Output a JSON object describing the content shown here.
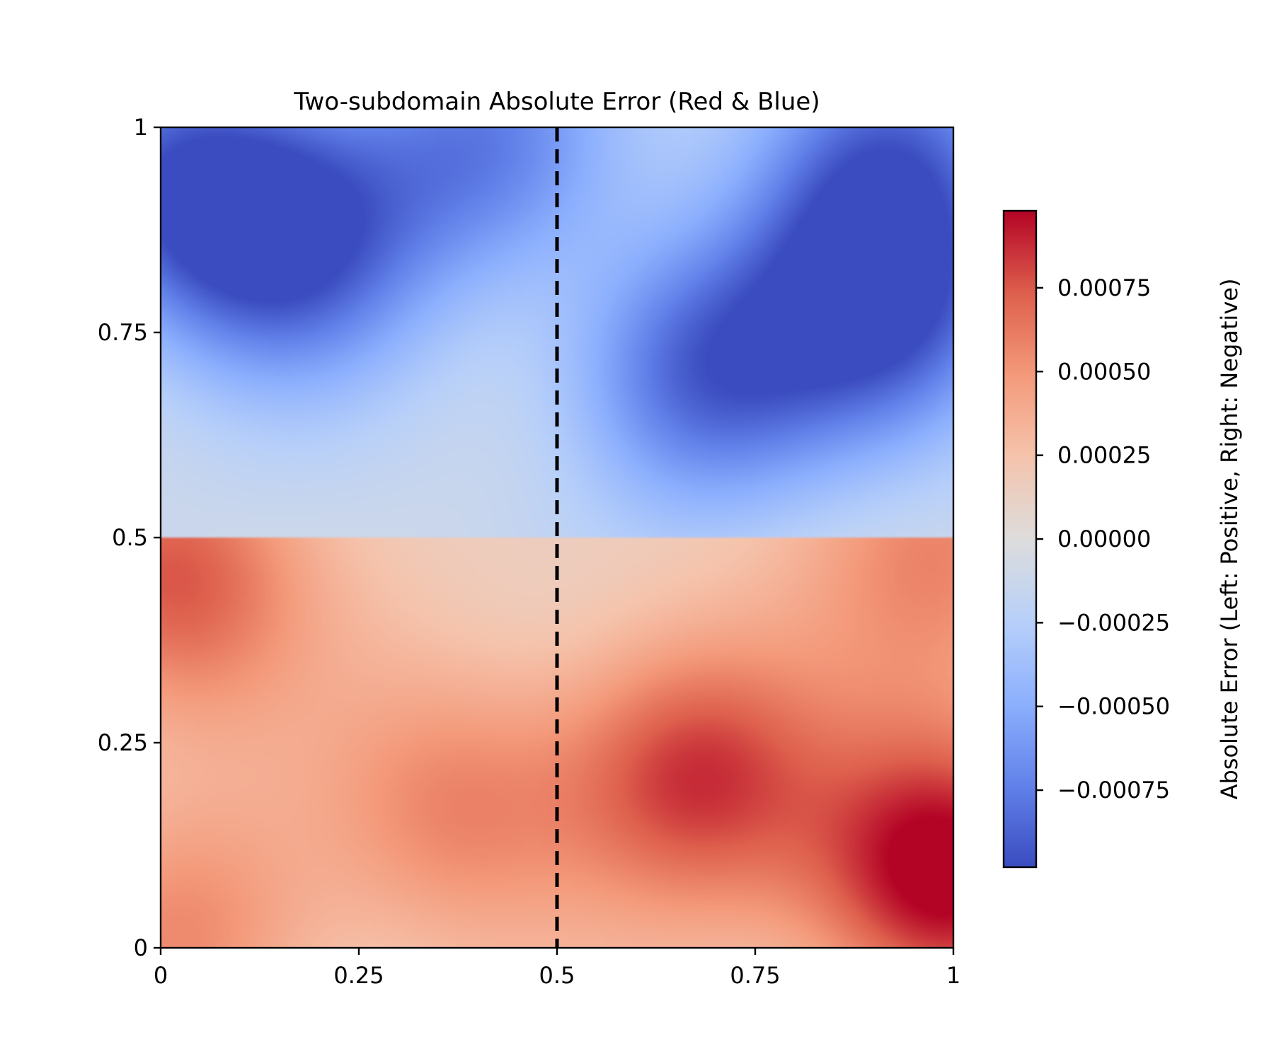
{
  "chart_data": {
    "type": "heatmap",
    "title": "Two-subdomain Absolute Error (Red & Blue)",
    "xlabel": "",
    "ylabel": "",
    "xlim": [
      0,
      1
    ],
    "ylim": [
      0,
      1
    ],
    "x_ticks": [
      {
        "value": 0,
        "label": "0"
      },
      {
        "value": 0.25,
        "label": "0.25"
      },
      {
        "value": 0.5,
        "label": "0.5"
      },
      {
        "value": 0.75,
        "label": "0.75"
      },
      {
        "value": 1,
        "label": "1"
      }
    ],
    "y_ticks": [
      {
        "value": 0,
        "label": "0"
      },
      {
        "value": 0.25,
        "label": "0.25"
      },
      {
        "value": 0.5,
        "label": "0.5"
      },
      {
        "value": 0.75,
        "label": "0.75"
      },
      {
        "value": 1,
        "label": "1"
      }
    ],
    "colormap": "coolwarm",
    "colorbar": {
      "label": "Absolute Error (Left: Positive, Right: Negative)",
      "range": [
        -0.00098,
        0.00098
      ],
      "ticks": [
        {
          "value": 0.00075,
          "label": "0.00075"
        },
        {
          "value": 0.0005,
          "label": "0.00050"
        },
        {
          "value": 0.00025,
          "label": "0.00025"
        },
        {
          "value": 0,
          "label": "0.00000"
        },
        {
          "value": -0.00025,
          "label": "−0.00025"
        },
        {
          "value": -0.0005,
          "label": "−0.00050"
        },
        {
          "value": -0.00075,
          "label": "−0.00075"
        }
      ]
    },
    "interface_line": {
      "x": 0.5,
      "style": "dashed",
      "color": "#000000"
    },
    "subdomain_split_y": 0.5,
    "approximate_extrema": [
      {
        "x": 0.17,
        "y": 0.86,
        "value": -0.0007
      },
      {
        "x": 0.68,
        "y": 0.7,
        "value": -0.00075
      },
      {
        "x": 0.91,
        "y": 0.79,
        "value": -0.0008
      },
      {
        "x": 0.02,
        "y": 0.93,
        "value": -0.0007
      },
      {
        "x": 0.41,
        "y": 0.98,
        "value": -0.0006
      },
      {
        "x": 0.92,
        "y": 0.98,
        "value": -0.0006
      },
      {
        "x": 0.67,
        "y": 0.21,
        "value": 0.0007
      },
      {
        "x": 0.99,
        "y": 0.09,
        "value": 0.0009
      },
      {
        "x": 0.38,
        "y": 0.17,
        "value": 0.0004
      },
      {
        "x": 0.01,
        "y": 0.45,
        "value": 0.0006
      },
      {
        "x": 0.03,
        "y": 0.01,
        "value": 0.0004
      },
      {
        "x": 0.98,
        "y": 0.49,
        "value": 0.0004
      }
    ]
  }
}
